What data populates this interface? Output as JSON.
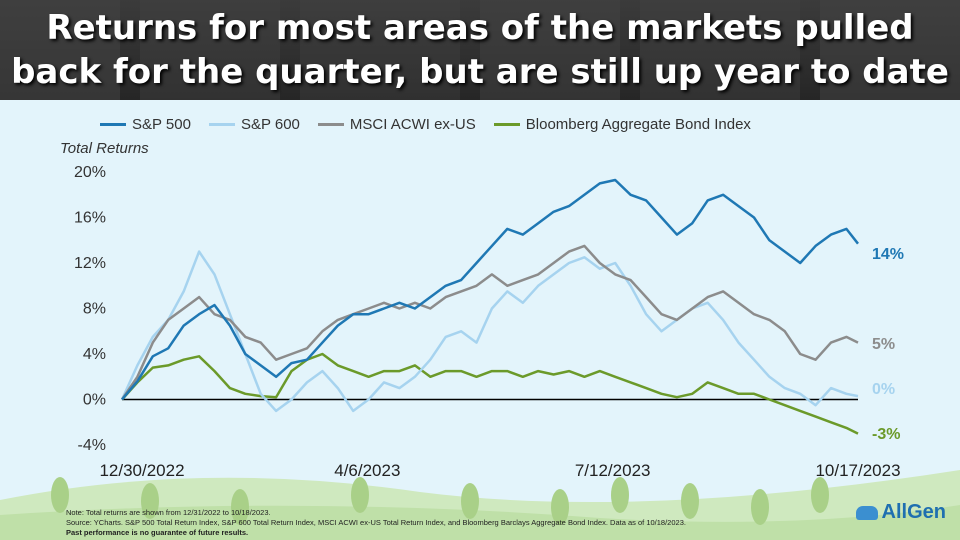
{
  "title": "Returns for most areas of the markets pulled back for the quarter, but are still up year to date",
  "y_axis_title": "Total Returns",
  "footnote": {
    "line1": "Note: Total returns are shown from 12/31/2022 to 10/18/2023.",
    "line2": "Source: YCharts. S&P 500 Total Return Index, S&P 600 Total Return Index, MSCI ACWI ex-US Total Return Index, and Bloomberg Barclays Aggregate Bond Index. Data as of 10/18/2023.",
    "line3": "Past performance is no guarantee of future results."
  },
  "logo_text": "AllGen",
  "colors": {
    "sp500": "#1f78b4",
    "sp600": "#a6d3ef",
    "msci": "#8c8c8c",
    "bond": "#6b9a2a"
  },
  "end_labels": {
    "sp500": "14%",
    "msci": "5%",
    "sp600": "0%",
    "bond": "-3%"
  },
  "chart_data": {
    "type": "line",
    "xlabel": "",
    "ylabel": "Total Returns",
    "ylim": [
      -4,
      20
    ],
    "yticks": [
      "-4%",
      "0%",
      "4%",
      "8%",
      "12%",
      "16%",
      "20%"
    ],
    "xticks": [
      "12/30/2022",
      "4/6/2023",
      "7/12/2023",
      "10/17/2023"
    ],
    "x_range": [
      "12/30/2022",
      "10/17/2023"
    ],
    "legend_position": "top",
    "grid": false,
    "series": [
      {
        "name": "S&P 500",
        "key": "sp500",
        "points": [
          [
            0,
            0
          ],
          [
            4,
            1.6
          ],
          [
            8,
            3.8
          ],
          [
            12,
            4.5
          ],
          [
            16,
            6.5
          ],
          [
            20,
            7.5
          ],
          [
            24,
            8.3
          ],
          [
            28,
            6.5
          ],
          [
            32,
            4.0
          ],
          [
            36,
            3.0
          ],
          [
            40,
            2.0
          ],
          [
            44,
            3.2
          ],
          [
            48,
            3.5
          ],
          [
            52,
            5.0
          ],
          [
            56,
            6.5
          ],
          [
            60,
            7.5
          ],
          [
            64,
            7.5
          ],
          [
            68,
            8.0
          ],
          [
            72,
            8.5
          ],
          [
            76,
            8.0
          ],
          [
            80,
            9.0
          ],
          [
            84,
            10.0
          ],
          [
            88,
            10.5
          ],
          [
            92,
            12.0
          ],
          [
            96,
            13.5
          ],
          [
            100,
            15.0
          ],
          [
            104,
            14.5
          ],
          [
            108,
            15.5
          ],
          [
            112,
            16.5
          ],
          [
            116,
            17.0
          ],
          [
            120,
            18.0
          ],
          [
            124,
            19.0
          ],
          [
            128,
            19.3
          ],
          [
            132,
            18.0
          ],
          [
            136,
            17.5
          ],
          [
            140,
            16.0
          ],
          [
            144,
            14.5
          ],
          [
            148,
            15.5
          ],
          [
            152,
            17.5
          ],
          [
            156,
            18.0
          ],
          [
            160,
            17.0
          ],
          [
            164,
            16.0
          ],
          [
            168,
            14.0
          ],
          [
            172,
            13.0
          ],
          [
            176,
            12.0
          ],
          [
            180,
            13.5
          ],
          [
            184,
            14.5
          ],
          [
            188,
            15.0
          ],
          [
            191,
            13.7
          ]
        ]
      },
      {
        "name": "S&P 600",
        "key": "sp600",
        "points": [
          [
            0,
            0
          ],
          [
            4,
            3.0
          ],
          [
            8,
            5.5
          ],
          [
            12,
            7.0
          ],
          [
            16,
            9.5
          ],
          [
            20,
            13.0
          ],
          [
            24,
            11.0
          ],
          [
            28,
            7.5
          ],
          [
            32,
            4.0
          ],
          [
            36,
            0.5
          ],
          [
            40,
            -1.0
          ],
          [
            44,
            0.0
          ],
          [
            48,
            1.5
          ],
          [
            52,
            2.5
          ],
          [
            56,
            1.0
          ],
          [
            60,
            -1.0
          ],
          [
            64,
            0.0
          ],
          [
            68,
            1.5
          ],
          [
            72,
            1.0
          ],
          [
            76,
            2.0
          ],
          [
            80,
            3.5
          ],
          [
            84,
            5.5
          ],
          [
            88,
            6.0
          ],
          [
            92,
            5.0
          ],
          [
            96,
            8.0
          ],
          [
            100,
            9.5
          ],
          [
            104,
            8.5
          ],
          [
            108,
            10.0
          ],
          [
            112,
            11.0
          ],
          [
            116,
            12.0
          ],
          [
            120,
            12.5
          ],
          [
            124,
            11.5
          ],
          [
            128,
            12.0
          ],
          [
            132,
            10.0
          ],
          [
            136,
            7.5
          ],
          [
            140,
            6.0
          ],
          [
            144,
            7.0
          ],
          [
            148,
            8.0
          ],
          [
            152,
            8.5
          ],
          [
            156,
            7.0
          ],
          [
            160,
            5.0
          ],
          [
            164,
            3.5
          ],
          [
            168,
            2.0
          ],
          [
            172,
            1.0
          ],
          [
            176,
            0.5
          ],
          [
            180,
            -0.5
          ],
          [
            184,
            1.0
          ],
          [
            188,
            0.5
          ],
          [
            191,
            0.3
          ]
        ]
      },
      {
        "name": "MSCI ACWI ex-US",
        "key": "msci",
        "points": [
          [
            0,
            0
          ],
          [
            4,
            2.0
          ],
          [
            8,
            5.0
          ],
          [
            12,
            7.0
          ],
          [
            16,
            8.0
          ],
          [
            20,
            9.0
          ],
          [
            24,
            7.5
          ],
          [
            28,
            7.0
          ],
          [
            32,
            5.5
          ],
          [
            36,
            5.0
          ],
          [
            40,
            3.5
          ],
          [
            44,
            4.0
          ],
          [
            48,
            4.5
          ],
          [
            52,
            6.0
          ],
          [
            56,
            7.0
          ],
          [
            60,
            7.5
          ],
          [
            64,
            8.0
          ],
          [
            68,
            8.5
          ],
          [
            72,
            8.0
          ],
          [
            76,
            8.5
          ],
          [
            80,
            8.0
          ],
          [
            84,
            9.0
          ],
          [
            88,
            9.5
          ],
          [
            92,
            10.0
          ],
          [
            96,
            11.0
          ],
          [
            100,
            10.0
          ],
          [
            104,
            10.5
          ],
          [
            108,
            11.0
          ],
          [
            112,
            12.0
          ],
          [
            116,
            13.0
          ],
          [
            120,
            13.5
          ],
          [
            124,
            12.0
          ],
          [
            128,
            11.0
          ],
          [
            132,
            10.5
          ],
          [
            136,
            9.0
          ],
          [
            140,
            7.5
          ],
          [
            144,
            7.0
          ],
          [
            148,
            8.0
          ],
          [
            152,
            9.0
          ],
          [
            156,
            9.5
          ],
          [
            160,
            8.5
          ],
          [
            164,
            7.5
          ],
          [
            168,
            7.0
          ],
          [
            172,
            6.0
          ],
          [
            176,
            4.0
          ],
          [
            180,
            3.5
          ],
          [
            184,
            5.0
          ],
          [
            188,
            5.5
          ],
          [
            191,
            5.0
          ]
        ]
      },
      {
        "name": "Bloomberg Aggregate Bond Index",
        "key": "bond",
        "points": [
          [
            0,
            0
          ],
          [
            4,
            1.5
          ],
          [
            8,
            2.8
          ],
          [
            12,
            3.0
          ],
          [
            16,
            3.5
          ],
          [
            20,
            3.8
          ],
          [
            24,
            2.5
          ],
          [
            28,
            1.0
          ],
          [
            32,
            0.5
          ],
          [
            36,
            0.3
          ],
          [
            40,
            0.2
          ],
          [
            44,
            2.5
          ],
          [
            48,
            3.5
          ],
          [
            52,
            4.0
          ],
          [
            56,
            3.0
          ],
          [
            60,
            2.5
          ],
          [
            64,
            2.0
          ],
          [
            68,
            2.5
          ],
          [
            72,
            2.5
          ],
          [
            76,
            3.0
          ],
          [
            80,
            2.0
          ],
          [
            84,
            2.5
          ],
          [
            88,
            2.5
          ],
          [
            92,
            2.0
          ],
          [
            96,
            2.5
          ],
          [
            100,
            2.5
          ],
          [
            104,
            2.0
          ],
          [
            108,
            2.5
          ],
          [
            112,
            2.2
          ],
          [
            116,
            2.5
          ],
          [
            120,
            2.0
          ],
          [
            124,
            2.5
          ],
          [
            128,
            2.0
          ],
          [
            132,
            1.5
          ],
          [
            136,
            1.0
          ],
          [
            140,
            0.5
          ],
          [
            144,
            0.2
          ],
          [
            148,
            0.5
          ],
          [
            152,
            1.5
          ],
          [
            156,
            1.0
          ],
          [
            160,
            0.5
          ],
          [
            164,
            0.5
          ],
          [
            168,
            0.0
          ],
          [
            172,
            -0.5
          ],
          [
            176,
            -1.0
          ],
          [
            180,
            -1.5
          ],
          [
            184,
            -2.0
          ],
          [
            188,
            -2.5
          ],
          [
            191,
            -3.0
          ]
        ]
      }
    ]
  }
}
